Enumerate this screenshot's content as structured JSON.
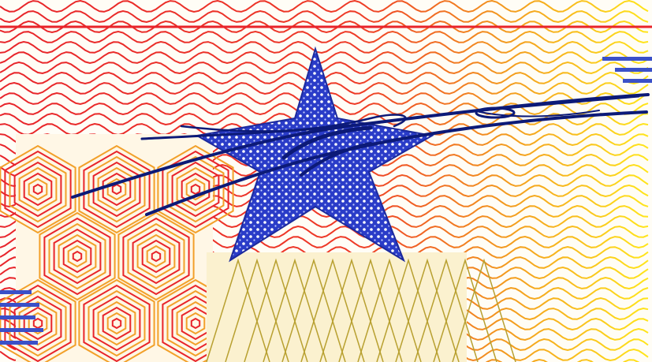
{
  "image": {
    "kind": "security-print-closeup",
    "colors": {
      "background": "#fffdf6",
      "guilloche_red": "#e8242a",
      "guilloche_orange": "#f39a1e",
      "guilloche_yellow": "#ffe51a",
      "star_fill": "#2a3cc8",
      "star_dots": "#ffffff",
      "signature_ink": "#0c1a78",
      "rosette_orange": "#f2a02a",
      "rosette_olive": "#b8a030",
      "microprint_blue": "#3a50c8"
    }
  }
}
